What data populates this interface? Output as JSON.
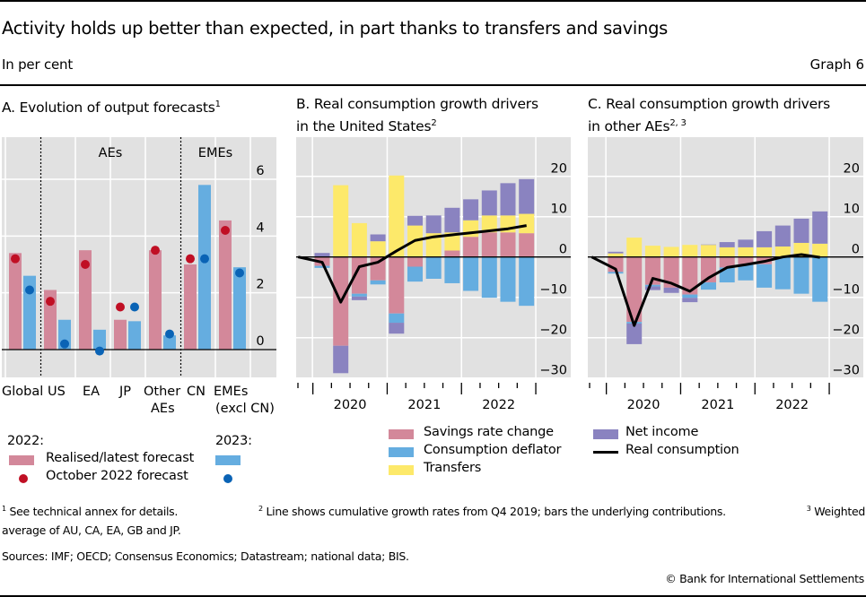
{
  "header": {
    "title": "Activity holds up better than expected, in part thanks to transfers and savings",
    "subtitle": "In per cent",
    "graph_number": "Graph 6"
  },
  "colors": {
    "pink": "#d3889a",
    "blue": "#65ade0",
    "yellow": "#fde96a",
    "purple": "#8a83c0",
    "red_dot": "#c00f24",
    "blue_dot": "#0a63b5",
    "plot_bg": "#e1e1e1"
  },
  "chart_data": [
    {
      "id": "A",
      "type": "bar",
      "title": "A. Evolution of output forecasts",
      "title_sup": "1",
      "categories": [
        "Global",
        "US",
        "EA",
        "JP",
        "Other AEs",
        "CN",
        "EMEs (excl CN)"
      ],
      "category_labels": [
        [
          "Global"
        ],
        [
          "US"
        ],
        [
          "EA"
        ],
        [
          "JP"
        ],
        [
          "Other",
          "AEs"
        ],
        [
          "CN"
        ],
        [
          "EMEs",
          "(excl CN)"
        ]
      ],
      "group_labels": [
        "AEs",
        "EMEs"
      ],
      "series": [
        {
          "name": "2022 Realised/latest forecast",
          "kind": "bar",
          "values": [
            3.4,
            2.1,
            3.5,
            1.05,
            3.5,
            3.0,
            4.55
          ]
        },
        {
          "name": "2023 Realised/latest forecast",
          "kind": "bar",
          "values": [
            2.6,
            1.05,
            0.7,
            1.0,
            0.5,
            5.8,
            2.9
          ]
        },
        {
          "name": "2022 October 2022 forecast",
          "kind": "dot",
          "values": [
            3.2,
            1.7,
            3.0,
            1.5,
            3.5,
            3.2,
            4.2
          ]
        },
        {
          "name": "2023 October 2022 forecast",
          "kind": "dot",
          "values": [
            2.1,
            0.2,
            -0.05,
            1.5,
            0.55,
            3.2,
            2.7
          ]
        }
      ],
      "yticks": [
        0,
        2,
        4,
        6
      ],
      "ylim": [
        -1.0,
        7.3
      ],
      "grid": true,
      "legend": {
        "year_2022": "2022:",
        "year_2023": "2023:",
        "bar_label": "Realised/latest forecast",
        "dot_label": "October 2022 forecast"
      }
    },
    {
      "id": "B",
      "type": "bar",
      "stacked": true,
      "title_lines": [
        "B. Real consumption growth drivers",
        "in the United States"
      ],
      "title_sup": "2",
      "x": [
        "Q1 2020",
        "Q2 2020",
        "Q3 2020",
        "Q4 2020",
        "Q1 2021",
        "Q2 2021",
        "Q3 2021",
        "Q4 2021",
        "Q1 2022",
        "Q2 2022",
        "Q3 2022",
        "Q4 2022"
      ],
      "year_labels": [
        "2020",
        "2021",
        "2022"
      ],
      "series": [
        {
          "name": "Savings rate change",
          "values": [
            -2.2,
            -22.0,
            -9.1,
            -5.8,
            -14.0,
            -2.4,
            0,
            1.6,
            5.0,
            6.1,
            6.1,
            5.9
          ]
        },
        {
          "name": "Consumption deflator",
          "values": [
            -0.5,
            0,
            -0.7,
            -1.0,
            -2.3,
            -3.7,
            -5.4,
            -6.5,
            -8.4,
            -10.1,
            -11.1,
            -12.1
          ]
        },
        {
          "name": "Transfers",
          "values": [
            0,
            17.8,
            8.4,
            3.9,
            20.2,
            7.8,
            5.9,
            4.5,
            4.1,
            4.2,
            4.2,
            4.8
          ]
        },
        {
          "name": "Net income",
          "values": [
            1.0,
            -6.8,
            -0.9,
            1.7,
            -2.7,
            2.4,
            4.4,
            6.1,
            5.2,
            6.2,
            8.0,
            8.6
          ]
        }
      ],
      "line": {
        "name": "Real consumption",
        "x": [
          "Q4 2019",
          "Q1 2020",
          "Q2 2020",
          "Q3 2020",
          "Q4 2020",
          "Q1 2021",
          "Q2 2021",
          "Q3 2021",
          "Q4 2021",
          "Q1 2022",
          "Q2 2022",
          "Q3 2022",
          "Q4 2022"
        ],
        "values": [
          0,
          -1.3,
          -11.2,
          -2.4,
          -1.3,
          1.5,
          4.1,
          5.0,
          5.5,
          6.0,
          6.5,
          7.0,
          7.8
        ]
      },
      "yticks": [
        -30,
        -20,
        -10,
        0,
        10,
        20
      ],
      "ylim": [
        -30,
        29
      ],
      "grid": true
    },
    {
      "id": "C",
      "type": "bar",
      "stacked": true,
      "title_lines": [
        "C. Real consumption growth drivers",
        "in other AEs"
      ],
      "title_sup": "2, 3",
      "x": [
        "Q1 2020",
        "Q2 2020",
        "Q3 2020",
        "Q4 2020",
        "Q1 2021",
        "Q2 2021",
        "Q3 2021",
        "Q4 2021",
        "Q1 2022",
        "Q2 2022",
        "Q3 2022",
        "Q4 2022"
      ],
      "year_labels": [
        "2020",
        "2021",
        "2022"
      ],
      "series": [
        {
          "name": "Savings rate change",
          "values": [
            -3.7,
            -16.1,
            -6.9,
            -7.6,
            -9.3,
            -6.3,
            -2.6,
            -1.8,
            -1.8,
            0,
            0,
            0
          ]
        },
        {
          "name": "Consumption deflator",
          "values": [
            -0.4,
            -0.4,
            -0.4,
            0,
            -0.8,
            -1.8,
            -3.7,
            -4.0,
            -5.8,
            -8.0,
            -9.1,
            -11.1
          ]
        },
        {
          "name": "Transfers",
          "values": [
            0.9,
            4.8,
            2.8,
            2.5,
            3.0,
            3.0,
            2.4,
            2.4,
            2.4,
            2.6,
            3.5,
            3.3
          ]
        },
        {
          "name": "Net income",
          "values": [
            0.4,
            -5.1,
            -0.9,
            -1.3,
            -1.1,
            0.1,
            1.3,
            1.9,
            4.0,
            5.2,
            6.0,
            8.0
          ]
        }
      ],
      "line": {
        "name": "Real consumption",
        "x": [
          "Q4 2019",
          "Q1 2020",
          "Q2 2020",
          "Q3 2020",
          "Q4 2020",
          "Q1 2021",
          "Q2 2021",
          "Q3 2021",
          "Q4 2021",
          "Q1 2022",
          "Q2 2022",
          "Q3 2022",
          "Q4 2022"
        ],
        "values": [
          0,
          -3.0,
          -17.0,
          -5.3,
          -6.5,
          -8.5,
          -5.2,
          -2.6,
          -1.9,
          -1.1,
          0,
          0.6,
          -0.1
        ]
      },
      "yticks": [
        -30,
        -20,
        -10,
        0,
        10,
        20
      ],
      "ylim": [
        -30,
        29
      ],
      "grid": true
    }
  ],
  "legend_bc": {
    "items": [
      {
        "label": "Savings rate change",
        "kind": "box",
        "color_key": "pink"
      },
      {
        "label": "Consumption deflator",
        "kind": "box",
        "color_key": "blue"
      },
      {
        "label": "Transfers",
        "kind": "box",
        "color_key": "yellow"
      },
      {
        "label": "Net income",
        "kind": "box",
        "color_key": "purple"
      },
      {
        "label": "Real consumption",
        "kind": "line",
        "color_key": "black"
      }
    ]
  },
  "footnotes": {
    "n1_mark": "1",
    "n1": "See technical annex for details.",
    "n2_mark": "2",
    "n2": "Line shows cumulative growth rates from Q4 2019; bars the underlying contributions.",
    "n3_mark": "3",
    "n3_line1": "Weighted",
    "n3_line2": "average of AU, CA, EA, GB and JP."
  },
  "sources": "Sources: IMF; OECD; Consensus Economics; Datastream; national data; BIS.",
  "copyright": "© Bank for International Settlements"
}
